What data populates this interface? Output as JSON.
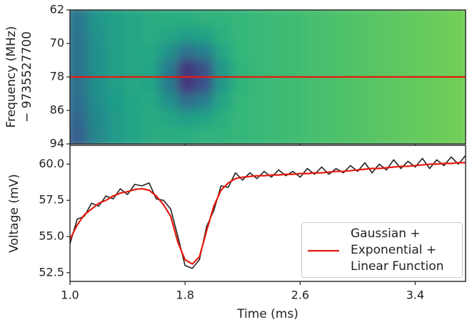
{
  "chart_data": [
    {
      "type": "heatmap",
      "ylabel": [
        "Frequency (MHz)",
        "− 9735527700"
      ],
      "xlim": [
        1.0,
        3.75
      ],
      "ylim": [
        94,
        62
      ],
      "yticks": [
        62,
        70,
        78,
        86,
        94
      ],
      "colormap": "viridis",
      "zlim": [
        0,
        1
      ],
      "x_edges": [
        1.0,
        1.125,
        1.25,
        1.375,
        1.5,
        1.625,
        1.75,
        1.875,
        2.0,
        2.125,
        2.25,
        2.375,
        2.5,
        2.625,
        2.75,
        2.875,
        3.0,
        3.125,
        3.25,
        3.375,
        3.5,
        3.625,
        3.75
      ],
      "y_edges": [
        62,
        66,
        70,
        74,
        78,
        82,
        86,
        90,
        94
      ],
      "z": [
        [
          0.4,
          0.52,
          0.57,
          0.59,
          0.61,
          0.62,
          0.62,
          0.64,
          0.65,
          0.66,
          0.67,
          0.68,
          0.69,
          0.7,
          0.71,
          0.72,
          0.73,
          0.74,
          0.75,
          0.76,
          0.77,
          0.78
        ],
        [
          0.39,
          0.51,
          0.56,
          0.59,
          0.61,
          0.59,
          0.56,
          0.58,
          0.63,
          0.66,
          0.67,
          0.68,
          0.69,
          0.7,
          0.71,
          0.72,
          0.73,
          0.74,
          0.75,
          0.76,
          0.77,
          0.78
        ],
        [
          0.38,
          0.5,
          0.56,
          0.59,
          0.6,
          0.51,
          0.37,
          0.43,
          0.59,
          0.66,
          0.67,
          0.68,
          0.69,
          0.7,
          0.71,
          0.72,
          0.73,
          0.74,
          0.75,
          0.76,
          0.77,
          0.78
        ],
        [
          0.38,
          0.5,
          0.56,
          0.59,
          0.58,
          0.42,
          0.15,
          0.25,
          0.54,
          0.65,
          0.67,
          0.68,
          0.69,
          0.7,
          0.71,
          0.72,
          0.73,
          0.74,
          0.75,
          0.76,
          0.77,
          0.78
        ],
        [
          0.37,
          0.5,
          0.56,
          0.59,
          0.58,
          0.42,
          0.15,
          0.25,
          0.54,
          0.65,
          0.67,
          0.68,
          0.69,
          0.7,
          0.71,
          0.72,
          0.73,
          0.74,
          0.75,
          0.76,
          0.77,
          0.78
        ],
        [
          0.36,
          0.49,
          0.55,
          0.58,
          0.6,
          0.51,
          0.37,
          0.43,
          0.59,
          0.66,
          0.67,
          0.68,
          0.69,
          0.7,
          0.71,
          0.72,
          0.73,
          0.74,
          0.75,
          0.76,
          0.77,
          0.78
        ],
        [
          0.33,
          0.47,
          0.54,
          0.58,
          0.61,
          0.59,
          0.56,
          0.58,
          0.63,
          0.66,
          0.67,
          0.68,
          0.69,
          0.7,
          0.71,
          0.72,
          0.73,
          0.74,
          0.75,
          0.76,
          0.77,
          0.78
        ],
        [
          0.31,
          0.46,
          0.54,
          0.58,
          0.61,
          0.62,
          0.62,
          0.64,
          0.65,
          0.66,
          0.67,
          0.68,
          0.69,
          0.7,
          0.71,
          0.72,
          0.73,
          0.74,
          0.75,
          0.76,
          0.77,
          0.78
        ]
      ],
      "hlines": [
        {
          "value": 78,
          "color": "#e8190f"
        }
      ]
    },
    {
      "type": "line",
      "xlabel": "Time (ms)",
      "ylabel": "Voltage (mV)",
      "xlim": [
        1.0,
        3.75
      ],
      "ylim": [
        51.9,
        61.3
      ],
      "xticks": [
        {
          "value": 1,
          "label": "1.0"
        },
        1.8,
        2.6,
        3.4
      ],
      "yticks": [
        52.5,
        {
          "value": 55,
          "label": "55.0"
        },
        57.5,
        {
          "value": 60,
          "label": "60.0"
        }
      ],
      "x": [
        1.0,
        1.05,
        1.1,
        1.15,
        1.2,
        1.25,
        1.3,
        1.35,
        1.4,
        1.45,
        1.5,
        1.55,
        1.6,
        1.65,
        1.7,
        1.75,
        1.8,
        1.85,
        1.9,
        1.95,
        2.0,
        2.05,
        2.1,
        2.15,
        2.2,
        2.25,
        2.3,
        2.35,
        2.4,
        2.45,
        2.5,
        2.55,
        2.6,
        2.65,
        2.7,
        2.75,
        2.8,
        2.85,
        2.9,
        2.95,
        3.0,
        3.05,
        3.1,
        3.15,
        3.2,
        3.25,
        3.3,
        3.35,
        3.4,
        3.45,
        3.5,
        3.55,
        3.6,
        3.65,
        3.7,
        3.75
      ],
      "series": [
        {
          "color": "#222222",
          "values": [
            54.5,
            56.2,
            56.4,
            57.3,
            57.1,
            57.8,
            57.6,
            58.3,
            57.9,
            58.6,
            58.5,
            58.7,
            57.6,
            57.5,
            56.9,
            55.0,
            53.0,
            52.8,
            53.4,
            55.7,
            56.8,
            58.5,
            58.4,
            59.4,
            58.9,
            59.4,
            59.0,
            59.5,
            59.1,
            59.6,
            59.2,
            59.5,
            59.1,
            59.7,
            59.3,
            59.8,
            59.3,
            59.7,
            59.4,
            59.9,
            59.5,
            60.1,
            59.4,
            60.0,
            59.6,
            60.3,
            59.7,
            60.2,
            59.8,
            60.4,
            59.7,
            60.3,
            59.9,
            60.5,
            60.0,
            60.6
          ]
        },
        {
          "name": "Gaussian + Exponential + Linear Function",
          "color": "#e8190f",
          "values": [
            54.8,
            55.8,
            56.5,
            56.9,
            57.3,
            57.5,
            57.8,
            58.0,
            58.1,
            58.25,
            58.3,
            58.2,
            57.8,
            57.2,
            56.4,
            54.6,
            53.4,
            53.1,
            53.6,
            55.4,
            57.1,
            58.2,
            58.7,
            59.0,
            59.1,
            59.15,
            59.2,
            59.2,
            59.25,
            59.25,
            59.3,
            59.3,
            59.35,
            59.35,
            59.4,
            59.4,
            59.45,
            59.5,
            59.5,
            59.55,
            59.6,
            59.65,
            59.7,
            59.7,
            59.75,
            59.8,
            59.85,
            59.85,
            59.9,
            59.95,
            60.0,
            60.0,
            60.05,
            60.05,
            60.1,
            60.1
          ]
        }
      ],
      "legend": "lower right"
    }
  ]
}
